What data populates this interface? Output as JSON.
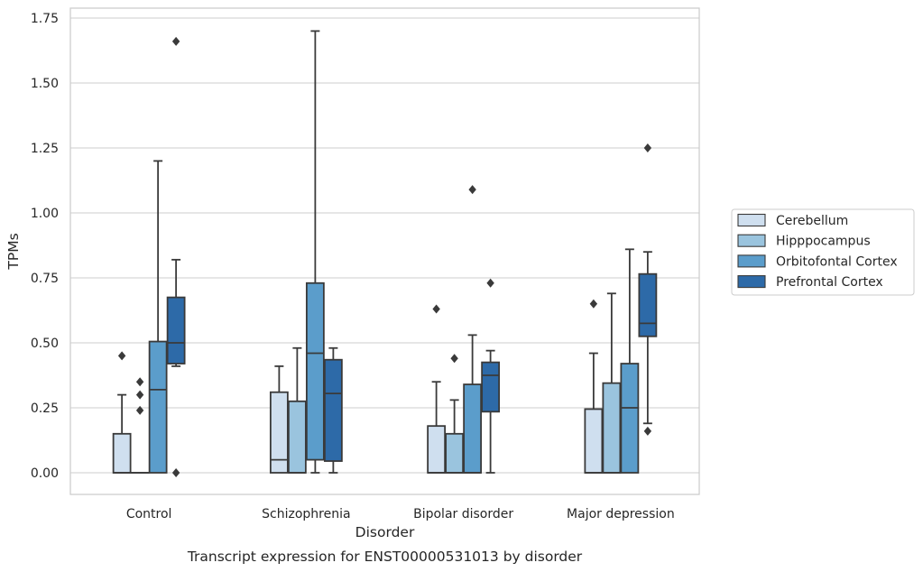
{
  "chart_data": {
    "type": "box",
    "title": "Transcript expression for ENST00000531013 by disorder",
    "xlabel": "Disorder",
    "ylabel": "TPMs",
    "ylim": [
      -0.08,
      1.78
    ],
    "yticks": [
      0.0,
      0.25,
      0.5,
      0.75,
      1.0,
      1.25,
      1.5,
      1.75
    ],
    "ytick_labels": [
      "0.00",
      "0.25",
      "0.50",
      "0.75",
      "1.00",
      "1.25",
      "1.50",
      "1.75"
    ],
    "grid": true,
    "legend_position": "right",
    "categories": [
      "Control",
      "Schizophrenia",
      "Bipolar disorder",
      "Major depression"
    ],
    "series": [
      {
        "name": "Cerebellum",
        "color": "#cfdfef",
        "boxes": [
          {
            "whislo": 0.0,
            "q1": 0.0,
            "med": 0.0,
            "q3": 0.15,
            "whishi": 0.3,
            "fliers": [
              0.45
            ]
          },
          {
            "whislo": 0.0,
            "q1": 0.0,
            "med": 0.05,
            "q3": 0.31,
            "whishi": 0.41,
            "fliers": []
          },
          {
            "whislo": 0.0,
            "q1": 0.0,
            "med": 0.0,
            "q3": 0.18,
            "whishi": 0.35,
            "fliers": [
              0.63
            ]
          },
          {
            "whislo": 0.0,
            "q1": 0.0,
            "med": 0.0,
            "q3": 0.245,
            "whishi": 0.46,
            "fliers": [
              0.65
            ]
          }
        ]
      },
      {
        "name": "Hipppocampus",
        "color": "#9ac4de",
        "boxes": [
          {
            "whislo": 0.0,
            "q1": 0.0,
            "med": 0.0,
            "q3": 0.0,
            "whishi": 0.0,
            "fliers": [
              0.24,
              0.3,
              0.35
            ]
          },
          {
            "whislo": 0.0,
            "q1": 0.0,
            "med": 0.0,
            "q3": 0.275,
            "whishi": 0.48,
            "fliers": []
          },
          {
            "whislo": 0.0,
            "q1": 0.0,
            "med": 0.0,
            "q3": 0.15,
            "whishi": 0.28,
            "fliers": [
              0.44
            ]
          },
          {
            "whislo": 0.0,
            "q1": 0.0,
            "med": 0.0,
            "q3": 0.345,
            "whishi": 0.69,
            "fliers": []
          }
        ]
      },
      {
        "name": "Orbitofontal Cortex",
        "color": "#5b9dcb",
        "boxes": [
          {
            "whislo": 0.0,
            "q1": 0.0,
            "med": 0.32,
            "q3": 0.505,
            "whishi": 1.2,
            "fliers": []
          },
          {
            "whislo": 0.0,
            "q1": 0.05,
            "med": 0.46,
            "q3": 0.73,
            "whishi": 1.7,
            "fliers": []
          },
          {
            "whislo": 0.0,
            "q1": 0.0,
            "med": 0.0,
            "q3": 0.34,
            "whishi": 0.53,
            "fliers": [
              1.09
            ]
          },
          {
            "whislo": 0.0,
            "q1": 0.0,
            "med": 0.25,
            "q3": 0.42,
            "whishi": 0.86,
            "fliers": []
          }
        ]
      },
      {
        "name": "Prefrontal Cortex",
        "color": "#2d6aa8",
        "boxes": [
          {
            "whislo": 0.41,
            "q1": 0.42,
            "med": 0.5,
            "q3": 0.675,
            "whishi": 0.82,
            "fliers": [
              0.0,
              1.66
            ]
          },
          {
            "whislo": 0.0,
            "q1": 0.045,
            "med": 0.305,
            "q3": 0.435,
            "whishi": 0.48,
            "fliers": []
          },
          {
            "whislo": 0.0,
            "q1": 0.235,
            "med": 0.375,
            "q3": 0.425,
            "whishi": 0.47,
            "fliers": [
              0.73
            ]
          },
          {
            "whislo": 0.19,
            "q1": 0.525,
            "med": 0.575,
            "q3": 0.765,
            "whishi": 0.85,
            "fliers": [
              0.16,
              1.25
            ]
          }
        ]
      }
    ]
  }
}
